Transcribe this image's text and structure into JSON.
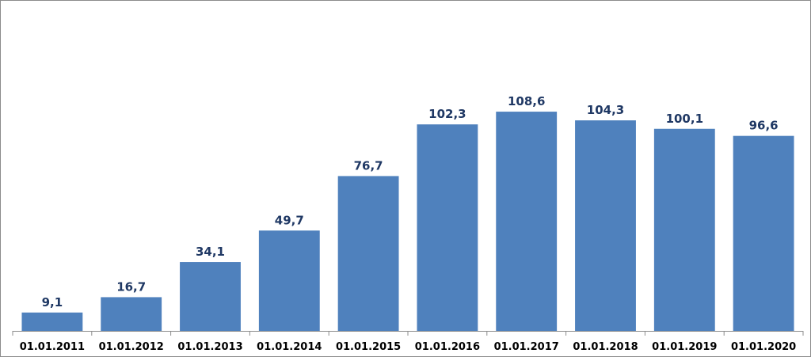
{
  "chart_data": {
    "type": "bar",
    "categories": [
      "01.01.2011",
      "01.01.2012",
      "01.01.2013",
      "01.01.2014",
      "01.01.2015",
      "01.01.2016",
      "01.01.2017",
      "01.01.2018",
      "01.01.2019",
      "01.01.2020"
    ],
    "values": [
      9.1,
      16.7,
      34.1,
      49.7,
      76.7,
      102.3,
      108.6,
      104.3,
      100.1,
      96.6
    ],
    "data_labels": [
      "9,1",
      "16,7",
      "34,1",
      "49,7",
      "76,7",
      "102,3",
      "108,6",
      "104,3",
      "100,1",
      "96,6"
    ],
    "ylim": [
      0,
      160
    ],
    "grid": false,
    "legend": "none",
    "colors": {
      "bar": "#4f81bd",
      "data_label": "#1f3864",
      "tick_label": "#000000",
      "axis": "#8c8c8c"
    }
  }
}
